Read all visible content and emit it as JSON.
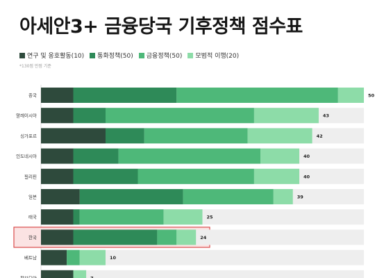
{
  "title": "아세안3+ 금융당국 기후정책 점수표",
  "note": "*130점 만점 기준",
  "colors": {
    "series": [
      "#2e4a3c",
      "#2e8a58",
      "#4eb879",
      "#8ddca8"
    ],
    "highlight_border": "#d94a4a",
    "highlight_bg": "#fbe3e3",
    "track": "#eeeeee"
  },
  "chart_data": {
    "type": "bar",
    "orientation": "horizontal",
    "stacked": true,
    "categories": [
      "중국",
      "말레이시아",
      "싱가포르",
      "인도네시아",
      "필리핀",
      "일본",
      "태국",
      "한국",
      "베트남",
      "캄보디아"
    ],
    "series": [
      {
        "name": "연구 및 옹호활동(10)",
        "values": [
          5,
          5,
          10,
          5,
          5,
          6,
          5,
          5,
          4,
          5
        ]
      },
      {
        "name": "통화정책(50)",
        "values": [
          16,
          5,
          6,
          7,
          10,
          16,
          1,
          13,
          0,
          0
        ]
      },
      {
        "name": "금융정책(50)",
        "values": [
          25,
          23,
          16,
          22,
          18,
          14,
          13,
          3,
          2,
          0
        ]
      },
      {
        "name": "모범적 이행(20)",
        "values": [
          4,
          10,
          10,
          6,
          7,
          3,
          6,
          3,
          4,
          2
        ]
      }
    ],
    "totals": [
      50,
      43,
      42,
      40,
      40,
      39,
      25,
      24,
      10,
      7
    ],
    "highlight": "한국",
    "xlim": [
      0,
      50
    ]
  }
}
